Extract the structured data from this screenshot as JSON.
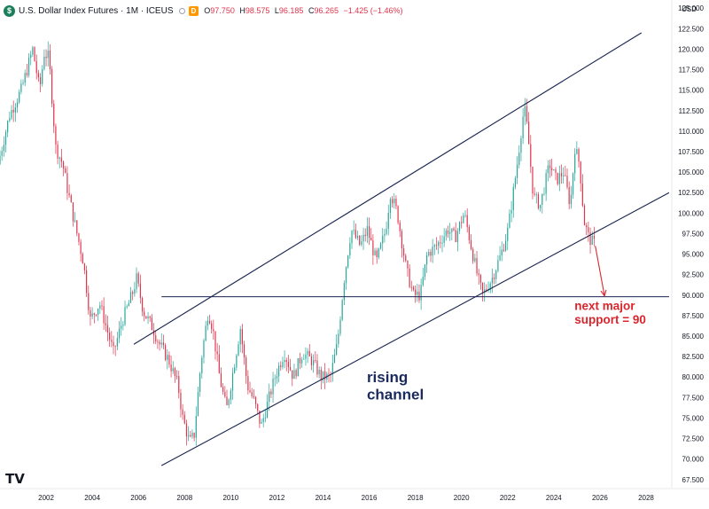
{
  "header": {
    "symbol_icon": "dollar-circle-icon",
    "title": "U.S. Dollar Index Futures · 1M · ICEUS",
    "badge": "D",
    "open_label": "O",
    "open": "97.750",
    "high_label": "H",
    "high": "98.575",
    "low_label": "L",
    "low": "96.185",
    "close_label": "C",
    "close": "96.265",
    "change": "−1.425 (−1.46%)",
    "currency": "USD"
  },
  "logo": "TV",
  "colors": {
    "up": "#26a69a",
    "down": "#e0344c",
    "channel": "#1a2550",
    "annotation_red": "#d9262c",
    "annotation_blue": "#1a2a5e"
  },
  "chart_data": {
    "type": "candlestick",
    "title": "U.S. Dollar Index Futures · 1M · ICEUS",
    "xlabel": "",
    "ylabel": "",
    "x_range": [
      2000.0,
      2029.0
    ],
    "y_range": [
      66.5,
      126.0
    ],
    "x_ticks": [
      2002,
      2004,
      2006,
      2008,
      2010,
      2012,
      2014,
      2016,
      2018,
      2020,
      2022,
      2024,
      2026,
      2028
    ],
    "y_ticks": [
      "67.500",
      "70.000",
      "72.500",
      "75.000",
      "77.500",
      "80.000",
      "82.500",
      "85.000",
      "87.500",
      "90.000",
      "92.500",
      "95.000",
      "97.500",
      "100.000",
      "102.500",
      "105.000",
      "107.500",
      "110.000",
      "112.500",
      "115.000",
      "117.500",
      "120.000",
      "122.500",
      "125.000"
    ],
    "y_tick_values": [
      67.5,
      70,
      72.5,
      75,
      77.5,
      80,
      82.5,
      85,
      87.5,
      90,
      92.5,
      95,
      97.5,
      100,
      102.5,
      105,
      107.5,
      110,
      112.5,
      115,
      117.5,
      120,
      122.5,
      125
    ],
    "price_path": [
      [
        2000.0,
        106
      ],
      [
        2000.5,
        112
      ],
      [
        2001.0,
        115
      ],
      [
        2001.5,
        120
      ],
      [
        2001.8,
        115
      ],
      [
        2002.0,
        119.5
      ],
      [
        2002.2,
        119
      ],
      [
        2002.5,
        108
      ],
      [
        2002.8,
        106
      ],
      [
        2003.0,
        103
      ],
      [
        2003.3,
        99
      ],
      [
        2003.7,
        94
      ],
      [
        2004.0,
        87
      ],
      [
        2004.4,
        89
      ],
      [
        2004.8,
        85
      ],
      [
        2005.0,
        83
      ],
      [
        2005.4,
        87
      ],
      [
        2005.8,
        90
      ],
      [
        2006.0,
        92
      ],
      [
        2006.3,
        88
      ],
      [
        2006.7,
        86
      ],
      [
        2007.0,
        84
      ],
      [
        2007.4,
        82
      ],
      [
        2007.8,
        79
      ],
      [
        2008.0,
        75
      ],
      [
        2008.3,
        72
      ],
      [
        2008.5,
        73
      ],
      [
        2008.8,
        82
      ],
      [
        2009.1,
        88
      ],
      [
        2009.3,
        86
      ],
      [
        2009.6,
        80
      ],
      [
        2009.9,
        76
      ],
      [
        2010.2,
        81
      ],
      [
        2010.5,
        86
      ],
      [
        2010.8,
        79
      ],
      [
        2011.1,
        77
      ],
      [
        2011.4,
        74
      ],
      [
        2011.7,
        77
      ],
      [
        2012.0,
        80
      ],
      [
        2012.4,
        83
      ],
      [
        2012.8,
        80
      ],
      [
        2013.2,
        83
      ],
      [
        2013.6,
        82
      ],
      [
        2014.0,
        80
      ],
      [
        2014.4,
        80
      ],
      [
        2014.7,
        84
      ],
      [
        2015.0,
        92
      ],
      [
        2015.3,
        98
      ],
      [
        2015.7,
        96
      ],
      [
        2016.0,
        98
      ],
      [
        2016.4,
        94
      ],
      [
        2016.8,
        98
      ],
      [
        2017.0,
        102.5
      ],
      [
        2017.3,
        100
      ],
      [
        2017.7,
        93
      ],
      [
        2018.0,
        90
      ],
      [
        2018.3,
        90
      ],
      [
        2018.6,
        95
      ],
      [
        2019.0,
        96
      ],
      [
        2019.5,
        98
      ],
      [
        2019.8,
        97
      ],
      [
        2020.2,
        100
      ],
      [
        2020.5,
        96
      ],
      [
        2020.8,
        92
      ],
      [
        2021.0,
        90
      ],
      [
        2021.4,
        92
      ],
      [
        2021.8,
        95
      ],
      [
        2022.1,
        98
      ],
      [
        2022.5,
        106
      ],
      [
        2022.8,
        113
      ],
      [
        2022.95,
        110
      ],
      [
        2023.2,
        102
      ],
      [
        2023.5,
        101
      ],
      [
        2023.9,
        106
      ],
      [
        2024.2,
        104
      ],
      [
        2024.5,
        105
      ],
      [
        2024.8,
        101
      ],
      [
        2025.0,
        108
      ],
      [
        2025.2,
        106
      ],
      [
        2025.4,
        99
      ],
      [
        2025.6,
        97
      ],
      [
        2025.8,
        96.3
      ]
    ],
    "lines": [
      {
        "name": "channel-upper",
        "from": [
          2005.8,
          84.0
        ],
        "to": [
          2027.8,
          122.0
        ]
      },
      {
        "name": "channel-lower",
        "from": [
          2007.0,
          69.2
        ],
        "to": [
          2029.0,
          102.5
        ]
      },
      {
        "name": "support-line",
        "from": [
          2007.0,
          89.8
        ],
        "to": [
          2029.0,
          89.8
        ]
      },
      {
        "name": "arrow",
        "from": [
          2025.8,
          96.0
        ],
        "to": [
          2026.2,
          89.9
        ]
      }
    ],
    "annotations": [
      {
        "name": "rising-channel-text",
        "lines": [
          "rising",
          "channel"
        ],
        "at": [
          2015.9,
          79.4
        ]
      },
      {
        "name": "support-text",
        "lines": [
          "next major",
          "support = 90"
        ],
        "at": [
          2024.9,
          88.2
        ]
      }
    ],
    "grid": false,
    "legend": "none"
  }
}
